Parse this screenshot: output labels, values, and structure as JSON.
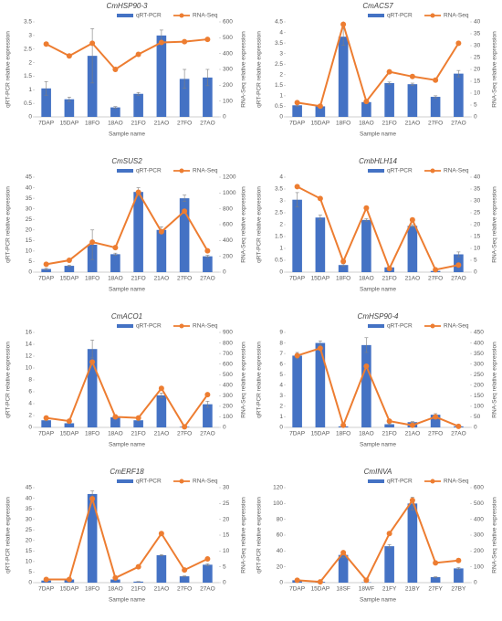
{
  "chart_data": [
    {
      "type": "combo",
      "title": "CmHSP90-3",
      "x_label": "Sample name",
      "y_label": "qRT-PCR relative expression",
      "y2_label": "RNA-Seq relative expression",
      "categories": [
        "7DAP",
        "15DAP",
        "18FO",
        "18AO",
        "21FO",
        "21AO",
        "27FO",
        "27AO"
      ],
      "series": [
        {
          "name": "qRT-PCR",
          "type": "bar",
          "color": "#4472c4",
          "values": [
            1.05,
            0.65,
            2.25,
            0.35,
            0.85,
            3.0,
            1.4,
            1.45
          ],
          "errors": [
            0.25,
            0.08,
            1.0,
            0.03,
            0.05,
            0.2,
            0.35,
            0.3
          ]
        },
        {
          "name": "RNA-Seq",
          "type": "line",
          "color": "#ed7d31",
          "axis": "y2",
          "values": [
            460,
            385,
            465,
            300,
            395,
            470,
            475,
            490
          ]
        }
      ],
      "ylim": [
        0,
        3.5
      ],
      "yticks": [
        0,
        0.5,
        1,
        1.5,
        2,
        2.5,
        3,
        3.5
      ],
      "y2lim": [
        0,
        600
      ],
      "y2ticks": [
        0,
        100,
        200,
        300,
        400,
        500,
        600
      ]
    },
    {
      "type": "combo",
      "title": "CmACS7",
      "x_label": "Sample name",
      "y_label": "qRT-PCR relative expression",
      "y2_label": "RNA-Seq relative expression",
      "categories": [
        "7DAP",
        "15DAP",
        "18FO",
        "18AO",
        "21FO",
        "21AO",
        "27FO",
        "27AO"
      ],
      "series": [
        {
          "name": "qRT-PCR",
          "type": "bar",
          "color": "#4472c4",
          "values": [
            0.55,
            0.5,
            3.8,
            0.7,
            1.6,
            1.55,
            0.95,
            2.05
          ],
          "errors": [
            0.05,
            0.05,
            0.4,
            0.05,
            0.05,
            0.05,
            0.05,
            0.15
          ]
        },
        {
          "name": "RNA-Seq",
          "type": "line",
          "color": "#ed7d31",
          "axis": "y2",
          "values": [
            6,
            4.5,
            39,
            6.5,
            19,
            17,
            15.5,
            31
          ]
        }
      ],
      "ylim": [
        0,
        4.5
      ],
      "yticks": [
        0,
        0.5,
        1,
        1.5,
        2,
        2.5,
        3,
        3.5,
        4,
        4.5
      ],
      "y2lim": [
        0,
        40
      ],
      "y2ticks": [
        0,
        5,
        10,
        15,
        20,
        25,
        30,
        35,
        40
      ]
    },
    {
      "type": "combo",
      "title": "CmSUS2",
      "x_label": "Sample name",
      "y_label": "qRT-PCR relative expression",
      "y2_label": "RNA-Seq relative expression",
      "categories": [
        "7DAP",
        "15DAP",
        "18FO",
        "18AO",
        "21FO",
        "21AO",
        "27FO",
        "27AO"
      ],
      "series": [
        {
          "name": "qRT-PCR",
          "type": "bar",
          "color": "#4472c4",
          "values": [
            1.5,
            3,
            13,
            8.5,
            38,
            20,
            35,
            7.5
          ],
          "errors": [
            0.3,
            0.3,
            7,
            0.5,
            2,
            1.5,
            1.5,
            0.5
          ]
        },
        {
          "name": "RNA-Seq",
          "type": "line",
          "color": "#ed7d31",
          "axis": "y2",
          "values": [
            100,
            150,
            380,
            310,
            1010,
            510,
            770,
            270
          ]
        }
      ],
      "ylim": [
        0,
        45
      ],
      "yticks": [
        0,
        5,
        10,
        15,
        20,
        25,
        30,
        35,
        40,
        45
      ],
      "y2lim": [
        0,
        1200
      ],
      "y2ticks": [
        0,
        200,
        400,
        600,
        800,
        1000,
        1200
      ]
    },
    {
      "type": "combo",
      "title": "CmbHLH14",
      "x_label": "Sample name",
      "y_label": "qRT-PCR relative expression",
      "y2_label": "RNA-Seq relative expression",
      "categories": [
        "7DAP",
        "15DAP",
        "18FO",
        "18AO",
        "21FO",
        "21AO",
        "27FO",
        "27AO"
      ],
      "series": [
        {
          "name": "qRT-PCR",
          "type": "bar",
          "color": "#4472c4",
          "values": [
            3.05,
            2.3,
            0.3,
            2.2,
            0.2,
            1.95,
            0.05,
            0.75
          ],
          "errors": [
            0.3,
            0.1,
            0.05,
            0.05,
            0.02,
            0.05,
            0.02,
            0.1
          ]
        },
        {
          "name": "RNA-Seq",
          "type": "line",
          "color": "#ed7d31",
          "axis": "y2",
          "values": [
            36,
            31,
            4.5,
            27,
            1.5,
            22,
            1,
            3
          ]
        }
      ],
      "ylim": [
        0,
        4
      ],
      "yticks": [
        0,
        0.5,
        1,
        1.5,
        2,
        2.5,
        3,
        3.5,
        4
      ],
      "y2lim": [
        0,
        40
      ],
      "y2ticks": [
        0,
        5,
        10,
        15,
        20,
        25,
        30,
        35,
        40
      ]
    },
    {
      "type": "combo",
      "title": "CmACO1",
      "x_label": "Sample name",
      "y_label": "qRT-PCR relative expression",
      "y2_label": "RNA-Seq relative expression",
      "categories": [
        "7DAP",
        "15DAP",
        "18FO",
        "18AO",
        "21FO",
        "21AO",
        "27FO",
        "27AO"
      ],
      "series": [
        {
          "name": "qRT-PCR",
          "type": "bar",
          "color": "#4472c4",
          "values": [
            1.2,
            0.7,
            13.2,
            1.7,
            1.2,
            5.4,
            0.1,
            3.9
          ],
          "errors": [
            0.1,
            0.05,
            1.5,
            0.1,
            0.1,
            0.4,
            0.02,
            0.5
          ]
        },
        {
          "name": "RNA-Seq",
          "type": "line",
          "color": "#ed7d31",
          "axis": "y2",
          "values": [
            90,
            60,
            620,
            100,
            90,
            370,
            5,
            310
          ]
        }
      ],
      "ylim": [
        0,
        16
      ],
      "yticks": [
        0,
        2,
        4,
        6,
        8,
        10,
        12,
        14,
        16
      ],
      "y2lim": [
        0,
        900
      ],
      "y2ticks": [
        0,
        100,
        200,
        300,
        400,
        500,
        600,
        700,
        800,
        900
      ]
    },
    {
      "type": "combo",
      "title": "CmHSP90-4",
      "x_label": "Sample name",
      "y_label": "qRT-PCR relative expression",
      "y2_label": "RNA-Seq relative expression",
      "categories": [
        "7DAP",
        "15DAP",
        "18FO",
        "18AO",
        "21FO",
        "21AO",
        "27FO",
        "27AO"
      ],
      "series": [
        {
          "name": "qRT-PCR",
          "type": "bar",
          "color": "#4472c4",
          "values": [
            6.8,
            8,
            0.1,
            7.8,
            0.3,
            0.5,
            1.2,
            0.1
          ],
          "errors": [
            0.3,
            0.2,
            0.02,
            0.7,
            0.05,
            0.05,
            0.1,
            0.02
          ]
        },
        {
          "name": "RNA-Seq",
          "type": "line",
          "color": "#ed7d31",
          "axis": "y2",
          "values": [
            340,
            375,
            10,
            290,
            30,
            10,
            50,
            5
          ]
        }
      ],
      "ylim": [
        0,
        9
      ],
      "yticks": [
        0,
        1,
        2,
        3,
        4,
        5,
        6,
        7,
        8,
        9
      ],
      "y2lim": [
        0,
        450
      ],
      "y2ticks": [
        0,
        50,
        100,
        150,
        200,
        250,
        300,
        350,
        400,
        450
      ]
    },
    {
      "type": "combo",
      "title": "CmERF18",
      "x_label": "Sample name",
      "y_label": "qRT-PCR relative expression",
      "y2_label": "RNA-Seq relative expression",
      "categories": [
        "7DAP",
        "15DAP",
        "18FO",
        "18AO",
        "21FO",
        "21AO",
        "27FO",
        "27AO"
      ],
      "series": [
        {
          "name": "qRT-PCR",
          "type": "bar",
          "color": "#4472c4",
          "values": [
            1,
            1.5,
            42,
            1.5,
            0.5,
            13,
            3,
            8.5
          ],
          "errors": [
            0.1,
            0.1,
            1.5,
            0.1,
            0.05,
            0.3,
            0.2,
            0.4
          ]
        },
        {
          "name": "RNA-Seq",
          "type": "line",
          "color": "#ed7d31",
          "axis": "y2",
          "values": [
            1,
            1,
            26.5,
            1.5,
            5,
            15.5,
            4,
            7.5
          ]
        }
      ],
      "ylim": [
        0,
        45
      ],
      "yticks": [
        0,
        5,
        10,
        15,
        20,
        25,
        30,
        35,
        40,
        45
      ],
      "y2lim": [
        0,
        30
      ],
      "y2ticks": [
        0,
        5,
        10,
        15,
        20,
        25,
        30
      ]
    },
    {
      "type": "combo",
      "title": "CmINVA",
      "x_label": "Sample name",
      "y_label": "qRT-PCR relative expression",
      "y2_label": "RNA-Seq relative expression",
      "categories": [
        "7DAP",
        "15DAP",
        "18SF",
        "18WF",
        "21FY",
        "21BY",
        "27FY",
        "27BY"
      ],
      "series": [
        {
          "name": "qRT-PCR",
          "type": "bar",
          "color": "#4472c4",
          "values": [
            3,
            1,
            35,
            0.5,
            46,
            100,
            7,
            18
          ],
          "errors": [
            0.5,
            0.2,
            3,
            0.1,
            2,
            8,
            0.5,
            1
          ]
        },
        {
          "name": "RNA-Seq",
          "type": "line",
          "color": "#ed7d31",
          "axis": "y2",
          "values": [
            15,
            5,
            190,
            15,
            310,
            520,
            125,
            140
          ]
        }
      ],
      "ylim": [
        0,
        120
      ],
      "yticks": [
        0,
        20,
        40,
        60,
        80,
        100,
        120
      ],
      "y2lim": [
        0,
        600
      ],
      "y2ticks": [
        0,
        100,
        200,
        300,
        400,
        500,
        600
      ]
    }
  ]
}
